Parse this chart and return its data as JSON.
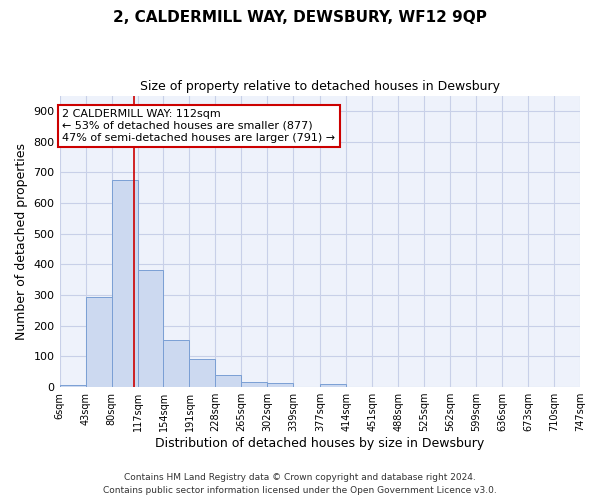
{
  "title": "2, CALDERMILL WAY, DEWSBURY, WF12 9QP",
  "subtitle": "Size of property relative to detached houses in Dewsbury",
  "xlabel": "Distribution of detached houses by size in Dewsbury",
  "ylabel": "Number of detached properties",
  "bar_edges": [
    6,
    43,
    80,
    117,
    154,
    191,
    228,
    265,
    302,
    339,
    377,
    414,
    451,
    488,
    525,
    562,
    599,
    636,
    673,
    710,
    747
  ],
  "bar_heights": [
    8,
    295,
    675,
    383,
    155,
    90,
    40,
    15,
    12,
    0,
    10,
    0,
    0,
    0,
    0,
    0,
    0,
    0,
    0,
    0
  ],
  "bar_color": "#ccd9f0",
  "bar_edge_color": "#7a9fd4",
  "vline_x": 112,
  "vline_color": "#cc0000",
  "ylim": [
    0,
    950
  ],
  "yticks": [
    0,
    100,
    200,
    300,
    400,
    500,
    600,
    700,
    800,
    900
  ],
  "annotation_line1": "2 CALDERMILL WAY: 112sqm",
  "annotation_line2": "← 53% of detached houses are smaller (877)",
  "annotation_line3": "47% of semi-detached houses are larger (791) →",
  "annotation_box_color": "#ffffff",
  "annotation_box_edge": "#cc0000",
  "footer1": "Contains HM Land Registry data © Crown copyright and database right 2024.",
  "footer2": "Contains public sector information licensed under the Open Government Licence v3.0.",
  "background_color": "#eef2fb",
  "grid_color": "#c8d0e8",
  "tick_labels": [
    "6sqm",
    "43sqm",
    "80sqm",
    "117sqm",
    "154sqm",
    "191sqm",
    "228sqm",
    "265sqm",
    "302sqm",
    "339sqm",
    "377sqm",
    "414sqm",
    "451sqm",
    "488sqm",
    "525sqm",
    "562sqm",
    "599sqm",
    "636sqm",
    "673sqm",
    "710sqm",
    "747sqm"
  ]
}
